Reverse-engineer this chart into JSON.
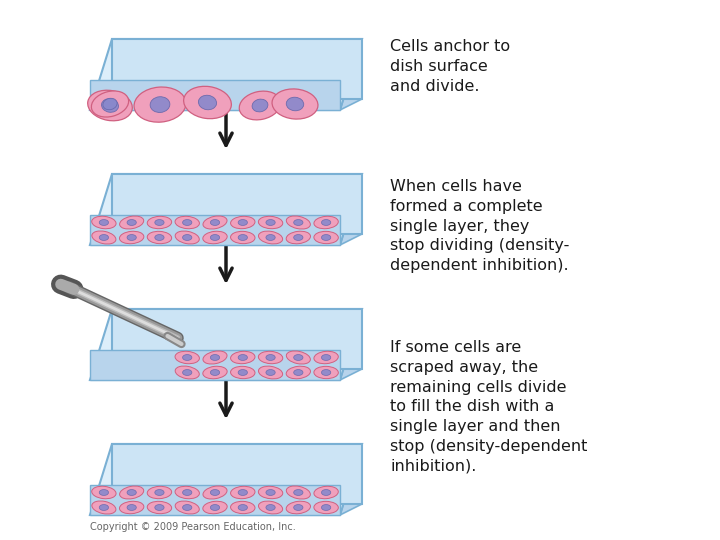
{
  "background_color": "#ffffff",
  "text_color": "#1a1a1a",
  "dish_top_color": "#cce4f5",
  "dish_body_color": "#ddeefa",
  "dish_edge_color": "#7ab0d4",
  "dish_floor_color": "#b8d4ec",
  "cell_fill_light": "#f5b8cc",
  "cell_fill_mid": "#f0a0bc",
  "cell_outline_color": "#d06080",
  "cell_nucleus_fill": "#8888cc",
  "cell_nucleus_outline": "#6666aa",
  "arrow_color": "#1a1a1a",
  "scraper_dark": "#555555",
  "scraper_mid": "#999999",
  "scraper_light": "#cccccc",
  "label1": "Cells anchor to\ndish surface\nand divide.",
  "label2": "When cells have\nformed a complete\nsingle layer, they\nstop dividing (density-\ndependent inhibition).",
  "label3": "If some cells are\nscraped away, the\nremaining cells divide\nto fill the dish with a\nsingle layer and then\nstop (density-dependent\ninhibition).",
  "copyright": "Copyright © 2009 Pearson Education, Inc.",
  "font_size_label": 11.5,
  "font_size_copyright": 7
}
